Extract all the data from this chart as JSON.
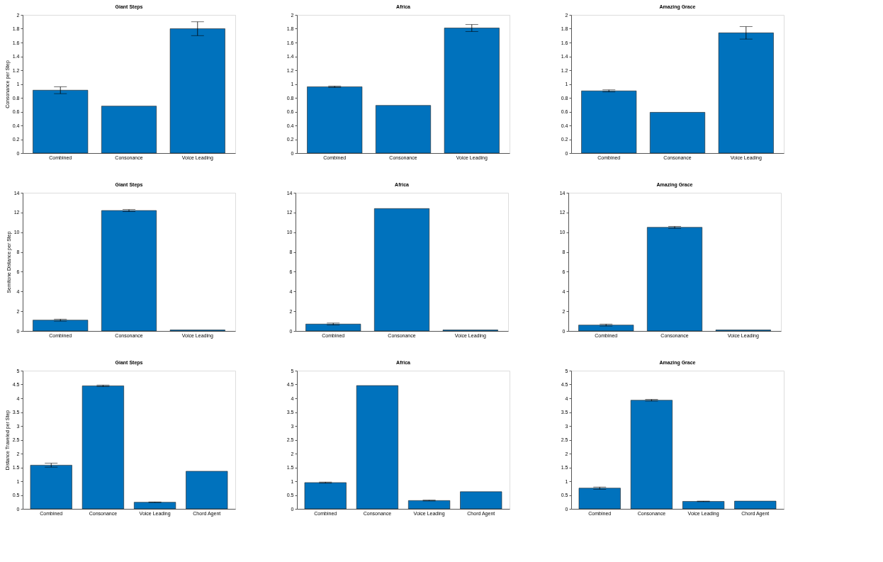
{
  "chart_data": [
    {
      "type": "bar",
      "title": "Giant Steps",
      "ylabel": "Consonance per Step",
      "categories": [
        "Combined",
        "Consonance",
        "Voice Leading"
      ],
      "values": [
        0.91,
        0.68,
        1.8
      ],
      "errors": [
        0.05,
        null,
        0.1
      ],
      "color": "#0072bd",
      "ylim": [
        0,
        2
      ],
      "yticks": [
        0,
        0.2,
        0.4,
        0.6,
        0.8,
        1,
        1.2,
        1.4,
        1.6,
        1.8,
        2
      ]
    },
    {
      "type": "bar",
      "title": "Africa",
      "categories": [
        "Combined",
        "Consonance",
        "Voice Leading"
      ],
      "values": [
        0.96,
        0.69,
        1.81
      ],
      "errors": [
        0.01,
        null,
        0.05
      ],
      "color": "#0072bd",
      "ylim": [
        0,
        2
      ],
      "yticks": [
        0,
        0.2,
        0.4,
        0.6,
        0.8,
        1,
        1.2,
        1.4,
        1.6,
        1.8,
        2
      ]
    },
    {
      "type": "bar",
      "title": "Amazing Grace",
      "categories": [
        "Combined",
        "Consonance",
        "Voice Leading"
      ],
      "values": [
        0.9,
        0.59,
        1.74
      ],
      "errors": [
        0.015,
        null,
        0.09
      ],
      "color": "#0072bd",
      "ylim": [
        0,
        2
      ],
      "yticks": [
        0,
        0.2,
        0.4,
        0.6,
        0.8,
        1,
        1.2,
        1.4,
        1.6,
        1.8,
        2
      ]
    },
    {
      "type": "bar",
      "title": "Giant Steps",
      "ylabel": "Semitone Distance per Step",
      "categories": [
        "Combined",
        "Consonance",
        "Voice Leading"
      ],
      "values": [
        1.1,
        12.2,
        0.1
      ],
      "errors": [
        0.1,
        0.1,
        null
      ],
      "color": "#0072bd",
      "ylim": [
        0,
        14
      ],
      "yticks": [
        0,
        2,
        4,
        6,
        8,
        10,
        12,
        14
      ]
    },
    {
      "type": "bar",
      "title": "Africa",
      "categories": [
        "Combined",
        "Consonance",
        "Voice Leading"
      ],
      "values": [
        0.7,
        12.4,
        0.1
      ],
      "errors": [
        0.1,
        null,
        null
      ],
      "color": "#0072bd",
      "ylim": [
        0,
        14
      ],
      "yticks": [
        0,
        2,
        4,
        6,
        8,
        10,
        12,
        14
      ]
    },
    {
      "type": "bar",
      "title": "Amazing Grace",
      "categories": [
        "Combined",
        "Consonance",
        "Voice Leading"
      ],
      "values": [
        0.6,
        10.5,
        0.1
      ],
      "errors": [
        0.1,
        0.1,
        null
      ],
      "color": "#0072bd",
      "ylim": [
        0,
        14
      ],
      "yticks": [
        0,
        2,
        4,
        6,
        8,
        10,
        12,
        14
      ]
    },
    {
      "type": "bar",
      "title": "Giant Steps",
      "ylabel": "Distance Traveled per Step",
      "categories": [
        "Combined",
        "Consonance",
        "Voice Leading",
        "Chord Agent"
      ],
      "values": [
        1.58,
        4.45,
        0.24,
        1.36
      ],
      "errors": [
        0.07,
        0.03,
        0.01,
        null
      ],
      "color": "#0072bd",
      "ylim": [
        0,
        5
      ],
      "yticks": [
        0,
        0.5,
        1,
        1.5,
        2,
        2.5,
        3,
        3.5,
        4,
        4.5,
        5
      ]
    },
    {
      "type": "bar",
      "title": "Africa",
      "categories": [
        "Combined",
        "Consonance",
        "Voice Leading",
        "Chord Agent"
      ],
      "values": [
        0.95,
        4.46,
        0.3,
        0.62
      ],
      "errors": [
        0.02,
        null,
        0.015,
        null
      ],
      "color": "#0072bd",
      "ylim": [
        0,
        5
      ],
      "yticks": [
        0,
        0.5,
        1,
        1.5,
        2,
        2.5,
        3,
        3.5,
        4,
        4.5,
        5
      ]
    },
    {
      "type": "bar",
      "title": "Amazing Grace",
      "categories": [
        "Combined",
        "Consonance",
        "Voice Leading",
        "Chord Agent"
      ],
      "values": [
        0.75,
        3.93,
        0.27,
        0.28
      ],
      "errors": [
        0.04,
        0.03,
        0.01,
        null
      ],
      "color": "#0072bd",
      "ylim": [
        0,
        5
      ],
      "yticks": [
        0,
        0.5,
        1,
        1.5,
        2,
        2.5,
        3,
        3.5,
        4,
        4.5,
        5
      ]
    }
  ]
}
